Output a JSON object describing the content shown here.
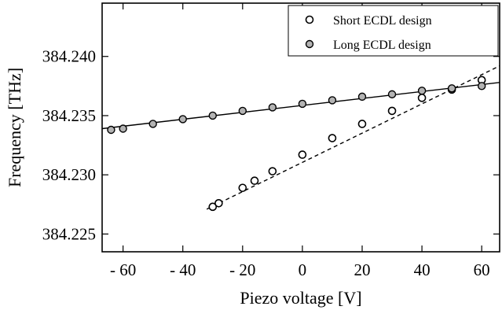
{
  "chart_data": {
    "type": "scatter",
    "xlabel": "Piezo voltage [V]",
    "ylabel": "Frequency  [THz]",
    "xlim": [
      -67,
      66
    ],
    "ylim": [
      384.2235,
      384.2445
    ],
    "x_ticks": [
      -60,
      -40,
      -20,
      0,
      20,
      40,
      60
    ],
    "x_tick_labels": [
      "- 60",
      "- 40",
      "- 20",
      "0",
      "20",
      "40",
      "60"
    ],
    "y_ticks": [
      384.225,
      384.23,
      384.235,
      384.24
    ],
    "y_tick_labels": [
      "384.225",
      "384.230",
      "384.235",
      "384.240"
    ],
    "grid": false,
    "legend_position": "top-right",
    "series": [
      {
        "name": "Short ECDL design",
        "marker": "open-circle",
        "color": "#000000",
        "points": [
          [
            -30,
            384.2273
          ],
          [
            -28,
            384.2276
          ],
          [
            -20,
            384.2289
          ],
          [
            -16,
            384.2295
          ],
          [
            -10,
            384.2303
          ],
          [
            0,
            384.2317
          ],
          [
            10,
            384.2331
          ],
          [
            20,
            384.2343
          ],
          [
            30,
            384.2354
          ],
          [
            40,
            384.2365
          ],
          [
            50,
            384.2372
          ],
          [
            60,
            384.238
          ]
        ],
        "fit": {
          "style": "dashed",
          "x": [
            -32,
            66
          ],
          "y": [
            384.2271,
            384.2392
          ]
        }
      },
      {
        "name": "Long ECDL design",
        "marker": "filled-circle",
        "color": "#b3b3b3",
        "points": [
          [
            -64,
            384.2338
          ],
          [
            -60,
            384.2339
          ],
          [
            -50,
            384.2343
          ],
          [
            -40,
            384.2347
          ],
          [
            -30,
            384.235
          ],
          [
            -20,
            384.2354
          ],
          [
            -10,
            384.2357
          ],
          [
            0,
            384.236
          ],
          [
            10,
            384.2363
          ],
          [
            20,
            384.2366
          ],
          [
            30,
            384.2368
          ],
          [
            40,
            384.2371
          ],
          [
            50,
            384.2373
          ],
          [
            60,
            384.2375
          ]
        ],
        "fit": {
          "style": "solid",
          "x": [
            -67,
            66
          ],
          "y": [
            384.2339,
            384.2378
          ]
        }
      }
    ]
  }
}
